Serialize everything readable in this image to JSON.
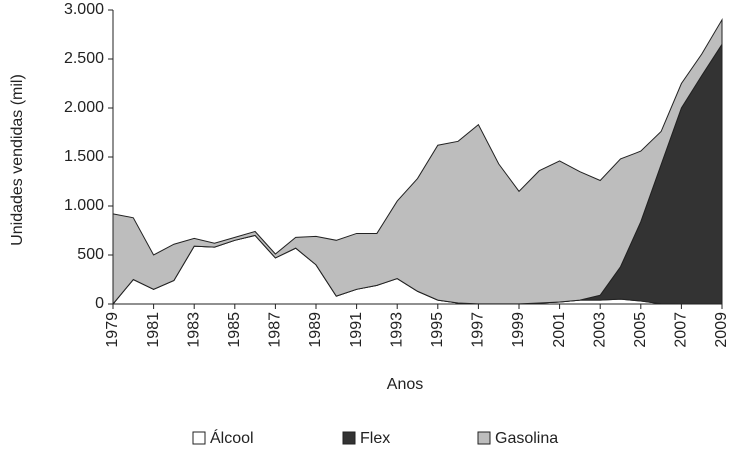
{
  "chart_data": {
    "type": "stacked-area",
    "y_label": "Unidades vendidas (mil)",
    "x_label": "Anos",
    "x": [
      1979,
      1980,
      1981,
      1982,
      1983,
      1984,
      1985,
      1986,
      1987,
      1988,
      1989,
      1990,
      1991,
      1992,
      1993,
      1994,
      1995,
      1996,
      1997,
      1998,
      1999,
      2000,
      2001,
      2002,
      2003,
      2004,
      2005,
      2006,
      2007,
      2008,
      2009
    ],
    "xlim": [
      1979,
      2009
    ],
    "xticks": [
      1979,
      1981,
      1983,
      1985,
      1987,
      1989,
      1991,
      1993,
      1995,
      1997,
      1999,
      2001,
      2003,
      2005,
      2007,
      2009
    ],
    "ylim": [
      0,
      3000
    ],
    "yticks": [
      0,
      500,
      {
        "value": 1000,
        "label": "1.000"
      },
      {
        "value": 1500,
        "label": "1.500"
      },
      {
        "value": 2000,
        "label": "2.000"
      },
      {
        "value": 2500,
        "label": "2.500"
      },
      {
        "value": 3000,
        "label": "3.000"
      }
    ],
    "grid": false,
    "series": [
      {
        "name": "Álcool",
        "color": "#ffffff",
        "values": [
          0,
          250,
          150,
          240,
          590,
          580,
          650,
          700,
          470,
          570,
          400,
          80,
          150,
          190,
          260,
          130,
          40,
          10,
          1,
          1,
          1,
          10,
          20,
          40,
          40,
          50,
          30,
          2,
          0,
          0,
          0
        ]
      },
      {
        "name": "Flex",
        "color": "#333333",
        "values": [
          0,
          0,
          0,
          0,
          0,
          0,
          0,
          0,
          0,
          0,
          0,
          0,
          0,
          0,
          0,
          0,
          0,
          0,
          0,
          0,
          0,
          0,
          0,
          0,
          50,
          330,
          810,
          1420,
          2000,
          2330,
          2650
        ]
      },
      {
        "name": "Gasolina",
        "color": "#bdbdbd",
        "values": [
          920,
          630,
          350,
          370,
          80,
          40,
          30,
          40,
          40,
          110,
          290,
          570,
          570,
          530,
          790,
          1150,
          1580,
          1650,
          1829,
          1429,
          1149,
          1350,
          1440,
          1310,
          1170,
          1100,
          720,
          338,
          250,
          220,
          250
        ]
      }
    ]
  }
}
